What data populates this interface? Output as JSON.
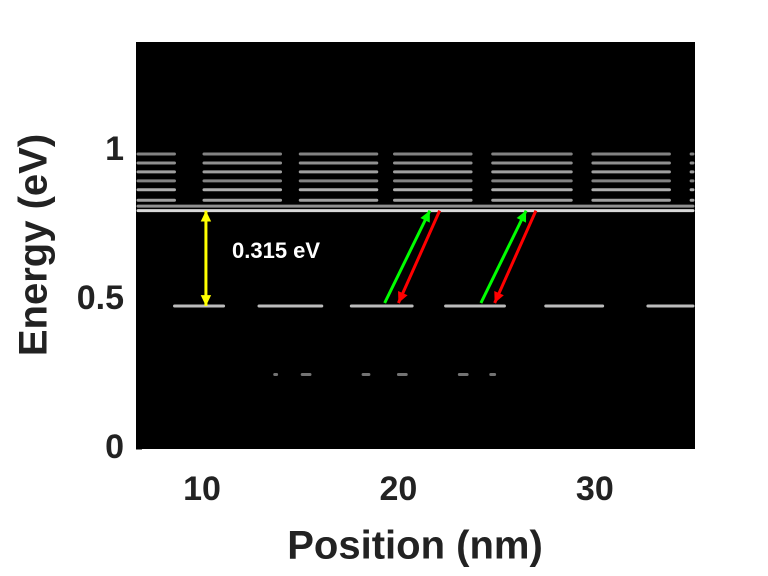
{
  "chart_data": {
    "type": "levels",
    "x_label": "Position (nm)",
    "y_label": "Energy (eV)",
    "xlim": [
      6.64,
      35.1
    ],
    "ylim": [
      0,
      1.366
    ],
    "xticks": [
      10,
      20,
      30
    ],
    "yticks": [
      0,
      0.5,
      1
    ],
    "background": "#000000",
    "levels": [
      {
        "energy": 0.25,
        "color": "#888888",
        "segments": [
          [
            13.6,
            13.9
          ],
          [
            15.0,
            15.6
          ],
          [
            18.1,
            18.6
          ],
          [
            19.9,
            20.5
          ],
          [
            23.0,
            23.6
          ],
          [
            24.6,
            25.0
          ]
        ]
      },
      {
        "energy": 0.48,
        "color": "#dddddd",
        "segments": [
          [
            8.5,
            11.2
          ],
          [
            12.8,
            16.2
          ],
          [
            17.5,
            20.8
          ],
          [
            22.3,
            25.5
          ],
          [
            27.4,
            30.5
          ],
          [
            32.6,
            35.1
          ]
        ]
      },
      {
        "energy": 0.8,
        "color": "#ffffff",
        "segments": [
          [
            6.64,
            35.1
          ]
        ]
      },
      {
        "energy": 0.815,
        "color": "#aaaaaa",
        "segments": [
          [
            6.64,
            35.1
          ]
        ]
      },
      {
        "energy": 0.835,
        "color": "#bbbbbb",
        "segments": [
          [
            6.64,
            8.7
          ],
          [
            10.0,
            14.1
          ],
          [
            14.9,
            19.0
          ],
          [
            19.7,
            23.8
          ],
          [
            24.7,
            28.9
          ],
          [
            29.8,
            33.9
          ],
          [
            34.8,
            35.1
          ]
        ]
      },
      {
        "energy": 0.87,
        "color": "#cccccc",
        "segments": [
          [
            6.64,
            8.7
          ],
          [
            10.0,
            14.1
          ],
          [
            14.9,
            19.0
          ],
          [
            19.7,
            23.8
          ],
          [
            24.7,
            28.9
          ],
          [
            29.8,
            33.9
          ],
          [
            34.8,
            35.1
          ]
        ]
      },
      {
        "energy": 0.9,
        "color": "#999999",
        "segments": [
          [
            6.64,
            8.7
          ],
          [
            10.0,
            14.1
          ],
          [
            14.9,
            19.0
          ],
          [
            19.7,
            23.8
          ],
          [
            24.7,
            28.9
          ],
          [
            29.8,
            33.9
          ],
          [
            34.8,
            35.1
          ]
        ]
      },
      {
        "energy": 0.93,
        "color": "#bbbbbb",
        "segments": [
          [
            6.64,
            8.7
          ],
          [
            10.0,
            14.1
          ],
          [
            14.9,
            19.0
          ],
          [
            19.7,
            23.8
          ],
          [
            24.7,
            28.9
          ],
          [
            29.8,
            33.9
          ],
          [
            34.8,
            35.1
          ]
        ]
      },
      {
        "energy": 0.96,
        "color": "#aaaaaa",
        "segments": [
          [
            6.64,
            8.7
          ],
          [
            10.0,
            14.1
          ],
          [
            14.9,
            19.0
          ],
          [
            19.7,
            23.8
          ],
          [
            24.7,
            28.9
          ],
          [
            29.8,
            33.9
          ],
          [
            34.8,
            35.1
          ]
        ]
      },
      {
        "energy": 0.99,
        "color": "#999999",
        "segments": [
          [
            6.64,
            8.7
          ],
          [
            10.0,
            14.1
          ],
          [
            14.9,
            19.0
          ],
          [
            19.7,
            23.8
          ],
          [
            24.7,
            28.9
          ],
          [
            29.8,
            33.9
          ],
          [
            34.8,
            35.1
          ]
        ]
      }
    ],
    "arrows": [
      {
        "x": [
          10.2,
          10.2
        ],
        "y": [
          0.48,
          0.8
        ],
        "color": "#ffff00",
        "heads": "both"
      },
      {
        "x": [
          19.3,
          21.6
        ],
        "y": [
          0.49,
          0.8
        ],
        "color": "#00ff00",
        "heads": "end"
      },
      {
        "x": [
          22.1,
          20.0
        ],
        "y": [
          0.8,
          0.49
        ],
        "color": "#ff0000",
        "heads": "end"
      },
      {
        "x": [
          24.2,
          26.5
        ],
        "y": [
          0.49,
          0.8
        ],
        "color": "#00ff00",
        "heads": "end"
      },
      {
        "x": [
          27.0,
          24.9
        ],
        "y": [
          0.8,
          0.49
        ],
        "color": "#ff0000",
        "heads": "end"
      }
    ],
    "annotation": "0.315 eV"
  }
}
